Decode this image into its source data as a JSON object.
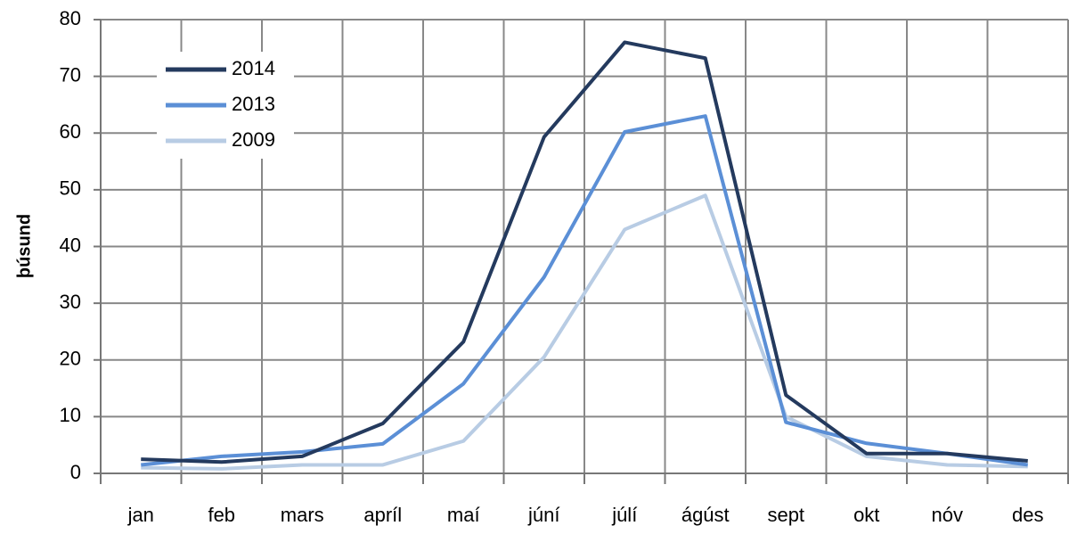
{
  "chart_data": {
    "type": "line",
    "y_label": "þúsund",
    "categories": [
      "jan",
      "feb",
      "mars",
      "apríl",
      "maí",
      "júní",
      "júlí",
      "ágúst",
      "sept",
      "okt",
      "nóv",
      "des"
    ],
    "series": [
      {
        "name": "2014",
        "color": "#243a5e",
        "values": [
          2.5,
          2,
          3,
          8.8,
          23.2,
          59.3,
          76,
          73.2,
          13.8,
          3.5,
          3.5,
          2.2
        ]
      },
      {
        "name": "2013",
        "color": "#5b8fd6",
        "values": [
          1.5,
          3,
          3.8,
          5.2,
          15.8,
          34.6,
          60.2,
          63,
          9,
          5.3,
          3.5,
          1.5
        ]
      },
      {
        "name": "2009",
        "color": "#b8cce4",
        "values": [
          1,
          0.8,
          1.5,
          1.5,
          5.7,
          20.5,
          43,
          49,
          10,
          3,
          1.5,
          1.2
        ]
      }
    ],
    "ylim": [
      0,
      80
    ],
    "yticks": [
      0,
      10,
      20,
      30,
      40,
      50,
      60,
      70,
      80
    ],
    "grid": true,
    "legend": "top-left"
  }
}
